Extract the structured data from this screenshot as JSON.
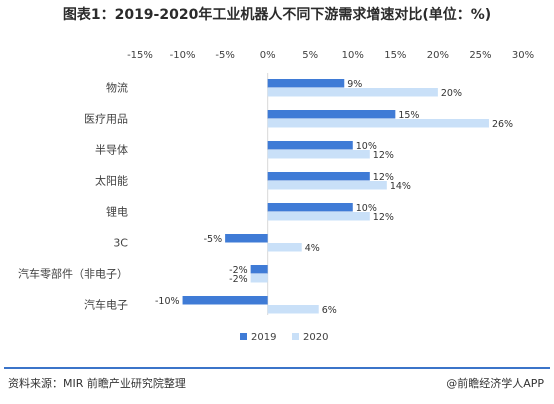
{
  "title": "图表1：2019-2020年工业机器人不同下游需求增速对比(单位：%)",
  "source": "资料来源：MIR 前瞻产业研究院整理",
  "brand": "@前瞻经济学人APP",
  "colors": {
    "series_2019": "#3f7bd6",
    "series_2020": "#c9e0f8",
    "axis_text": "#404040",
    "gridline": "#d9d9d9"
  },
  "chart_data": {
    "type": "bar",
    "orientation": "horizontal",
    "categories": [
      "物流",
      "医疗用品",
      "半导体",
      "太阳能",
      "锂电",
      "3C",
      "汽车零部件（非电子）",
      "汽车电子"
    ],
    "series": [
      {
        "name": "2019",
        "values": [
          9,
          15,
          10,
          12,
          10,
          -5,
          -2,
          -10
        ],
        "labels": [
          "9%",
          "15%",
          "10%",
          "12%",
          "10%",
          "-5%",
          "-2%",
          "-10%"
        ]
      },
      {
        "name": "2020",
        "values": [
          20,
          26,
          12,
          14,
          12,
          4,
          -2,
          6
        ],
        "labels": [
          "20%",
          "26%",
          "12%",
          "14%",
          "12%",
          "4%",
          "-2%",
          "6%"
        ]
      }
    ],
    "xlim": [
      -15,
      30
    ],
    "xticks": [
      -15,
      -10,
      -5,
      0,
      5,
      10,
      15,
      20,
      25,
      30
    ],
    "xtick_labels": [
      "-15%",
      "-10%",
      "-5%",
      "0%",
      "5%",
      "10%",
      "15%",
      "20%",
      "25%",
      "30%"
    ],
    "grid": false,
    "legend_position": "bottom"
  }
}
